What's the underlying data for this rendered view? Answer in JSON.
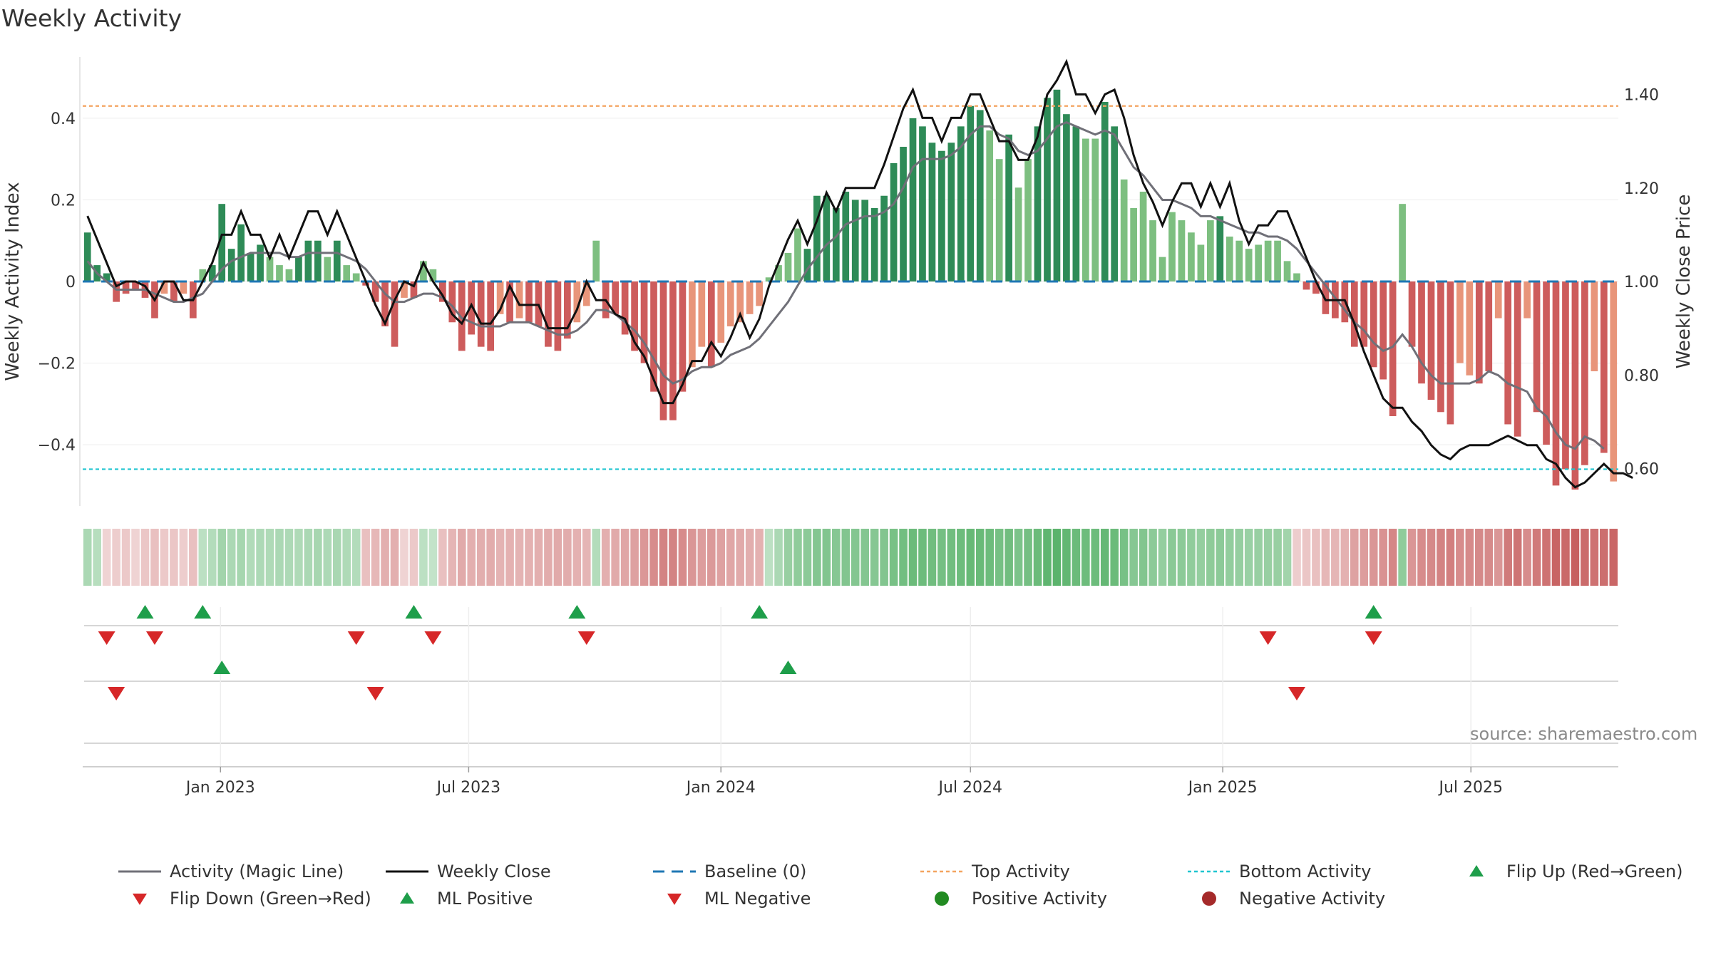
{
  "title": "Weekly Activity",
  "source": "source: sharemaestro.com",
  "colors": {
    "pos_dark": "#2e8b57",
    "pos_light": "#7dbf80",
    "neg_dark": "#cd5c5c",
    "neg_light": "#e8957a",
    "magic": "#707078",
    "close": "#111111",
    "baseline": "#1f77b4",
    "top": "#f4a460",
    "bottom": "#20c5d0",
    "up": "#1e9e4a",
    "down": "#d62728",
    "pos_dot": "#228b22",
    "neg_dot": "#a52a2a"
  },
  "chart_data": {
    "type": "bar",
    "y_left_label": "Weekly Activity Index",
    "y_right_label": "Weekly Close Price",
    "left_ticks": [
      "0.4",
      "0.2",
      "0",
      "−0.2",
      "−0.4"
    ],
    "right_ticks": [
      "1.40",
      "1.20",
      "1.00",
      "0.80",
      "0.60"
    ],
    "x_ticks": [
      "Jan 2023",
      "Jul 2023",
      "Jan 2024",
      "Jul 2024",
      "Jan 2025",
      "Jul 2025"
    ],
    "x_tick_dates": [
      "2023-01-01",
      "2023-07-01",
      "2024-01-01",
      "2024-07-01",
      "2025-01-01",
      "2025-07-01"
    ],
    "start_date": "2022-09-26",
    "ylim_left": [
      -0.55,
      0.55
    ],
    "ylim_right": [
      0.52,
      1.48
    ],
    "top_activity": 0.43,
    "bottom_activity": -0.46,
    "bar_weeks": [
      0,
      1,
      2,
      3,
      4,
      5,
      6,
      7,
      8,
      9,
      10,
      11,
      12,
      13,
      14,
      15,
      16,
      17,
      18,
      19,
      20,
      21,
      22,
      23,
      24,
      25,
      26,
      27,
      28,
      29,
      30,
      31,
      32,
      33,
      34,
      35,
      36,
      37,
      38,
      39,
      40,
      41,
      42,
      43,
      44,
      45,
      46,
      47,
      48,
      49,
      50,
      51,
      52,
      53,
      54,
      55,
      56,
      57,
      58,
      59,
      60,
      61,
      62,
      63,
      64,
      65,
      66,
      67,
      68,
      69,
      70,
      71,
      72,
      73,
      74,
      75,
      76,
      77,
      78,
      79,
      80,
      81,
      82,
      83,
      84,
      85,
      86,
      87,
      88,
      89,
      90,
      91,
      92,
      93,
      94,
      95,
      96,
      97,
      98,
      99,
      100,
      101,
      102,
      103,
      104,
      105,
      106,
      107,
      108,
      109,
      110,
      111,
      112,
      113,
      114,
      115,
      116,
      117,
      118,
      119,
      120,
      121,
      122,
      123,
      124,
      125,
      126,
      127,
      128,
      129,
      130,
      131,
      132,
      133,
      134,
      135,
      136,
      137,
      138,
      139,
      140,
      141,
      142,
      143,
      144,
      145,
      146,
      147,
      148,
      149,
      150,
      151,
      152,
      153,
      154,
      155,
      156,
      157,
      158,
      159
    ],
    "activity": [
      0.12,
      0.04,
      0.02,
      -0.05,
      -0.03,
      -0.02,
      -0.04,
      -0.09,
      -0.03,
      -0.05,
      -0.03,
      -0.09,
      0.03,
      0.04,
      0.19,
      0.08,
      0.14,
      0.07,
      0.09,
      0.06,
      0.04,
      0.03,
      0.06,
      0.1,
      0.1,
      0.06,
      0.1,
      0.04,
      0.02,
      -0.01,
      -0.05,
      -0.11,
      -0.16,
      -0.04,
      -0.04,
      0.05,
      0.03,
      -0.05,
      -0.1,
      -0.17,
      -0.13,
      -0.16,
      -0.17,
      -0.08,
      -0.1,
      -0.09,
      -0.1,
      -0.11,
      -0.16,
      -0.17,
      -0.14,
      -0.1,
      -0.06,
      0.1,
      -0.09,
      -0.08,
      -0.13,
      -0.17,
      -0.2,
      -0.27,
      -0.34,
      -0.34,
      -0.27,
      -0.21,
      -0.16,
      -0.21,
      -0.15,
      -0.11,
      -0.1,
      -0.08,
      -0.06,
      0.01,
      0.04,
      0.07,
      0.13,
      0.08,
      0.21,
      0.21,
      0.18,
      0.22,
      0.2,
      0.2,
      0.18,
      0.21,
      0.29,
      0.33,
      0.4,
      0.38,
      0.34,
      0.32,
      0.34,
      0.38,
      0.43,
      0.42,
      0.37,
      0.3,
      0.36,
      0.23,
      0.3,
      0.38,
      0.45,
      0.47,
      0.41,
      0.38,
      0.35,
      0.35,
      0.44,
      0.38,
      0.25,
      0.18,
      0.22,
      0.15,
      0.06,
      0.17,
      0.15,
      0.12,
      0.09,
      0.15,
      0.16,
      0.11,
      0.1,
      0.08,
      0.09,
      0.1,
      0.1,
      0.05,
      0.02,
      -0.02,
      -0.03,
      -0.08,
      -0.09,
      -0.1,
      -0.16,
      -0.16,
      -0.21,
      -0.24,
      -0.33,
      0.19,
      -0.16,
      -0.25,
      -0.29,
      -0.32,
      -0.35,
      -0.2,
      -0.23,
      -0.25,
      -0.22,
      -0.09,
      -0.35,
      -0.38,
      -0.09,
      -0.32,
      -0.4,
      -0.5,
      -0.46,
      -0.51,
      -0.45,
      -0.22,
      -0.42,
      -0.49
    ],
    "magic_line": [
      0.05,
      0.02,
      0.0,
      -0.02,
      -0.02,
      -0.02,
      -0.02,
      -0.03,
      -0.04,
      -0.05,
      -0.05,
      -0.04,
      -0.03,
      0.0,
      0.03,
      0.05,
      0.06,
      0.07,
      0.07,
      0.07,
      0.07,
      0.06,
      0.06,
      0.07,
      0.07,
      0.07,
      0.07,
      0.06,
      0.05,
      0.03,
      0.0,
      -0.03,
      -0.05,
      -0.05,
      -0.04,
      -0.03,
      -0.03,
      -0.04,
      -0.06,
      -0.09,
      -0.1,
      -0.11,
      -0.11,
      -0.11,
      -0.1,
      -0.1,
      -0.1,
      -0.11,
      -0.12,
      -0.13,
      -0.13,
      -0.12,
      -0.1,
      -0.07,
      -0.07,
      -0.08,
      -0.1,
      -0.12,
      -0.15,
      -0.19,
      -0.23,
      -0.25,
      -0.24,
      -0.22,
      -0.21,
      -0.21,
      -0.2,
      -0.18,
      -0.17,
      -0.16,
      -0.14,
      -0.11,
      -0.08,
      -0.05,
      -0.01,
      0.03,
      0.06,
      0.09,
      0.11,
      0.14,
      0.15,
      0.16,
      0.16,
      0.17,
      0.19,
      0.23,
      0.28,
      0.3,
      0.3,
      0.3,
      0.31,
      0.33,
      0.36,
      0.38,
      0.38,
      0.36,
      0.35,
      0.32,
      0.31,
      0.32,
      0.35,
      0.38,
      0.39,
      0.38,
      0.37,
      0.36,
      0.37,
      0.36,
      0.32,
      0.28,
      0.26,
      0.23,
      0.2,
      0.2,
      0.19,
      0.18,
      0.16,
      0.16,
      0.15,
      0.14,
      0.13,
      0.12,
      0.12,
      0.11,
      0.11,
      0.1,
      0.08,
      0.05,
      0.02,
      -0.01,
      -0.04,
      -0.07,
      -0.1,
      -0.12,
      -0.15,
      -0.17,
      -0.16,
      -0.13,
      -0.16,
      -0.2,
      -0.23,
      -0.25,
      -0.25,
      -0.25,
      -0.25,
      -0.24,
      -0.22,
      -0.23,
      -0.25,
      -0.26,
      -0.27,
      -0.31,
      -0.33,
      -0.37,
      -0.4,
      -0.41,
      -0.38,
      -0.39,
      -0.41
    ],
    "weekly_close": [
      1.14,
      1.09,
      1.04,
      0.99,
      1.0,
      1.0,
      0.99,
      0.96,
      1.0,
      1.0,
      0.96,
      0.96,
      1.0,
      1.04,
      1.1,
      1.1,
      1.15,
      1.1,
      1.1,
      1.05,
      1.1,
      1.05,
      1.1,
      1.15,
      1.15,
      1.1,
      1.15,
      1.1,
      1.05,
      1.0,
      0.95,
      0.91,
      0.96,
      1.0,
      0.99,
      1.04,
      1.0,
      0.97,
      0.93,
      0.91,
      0.95,
      0.91,
      0.91,
      0.94,
      0.99,
      0.95,
      0.95,
      0.95,
      0.9,
      0.9,
      0.9,
      0.94,
      1.0,
      0.96,
      0.96,
      0.93,
      0.92,
      0.87,
      0.84,
      0.79,
      0.74,
      0.74,
      0.78,
      0.83,
      0.83,
      0.87,
      0.84,
      0.88,
      0.93,
      0.88,
      0.92,
      0.99,
      1.04,
      1.09,
      1.13,
      1.08,
      1.13,
      1.19,
      1.15,
      1.2,
      1.2,
      1.2,
      1.2,
      1.25,
      1.31,
      1.37,
      1.41,
      1.35,
      1.35,
      1.3,
      1.35,
      1.35,
      1.4,
      1.4,
      1.35,
      1.3,
      1.3,
      1.26,
      1.26,
      1.31,
      1.4,
      1.43,
      1.47,
      1.4,
      1.4,
      1.36,
      1.4,
      1.41,
      1.35,
      1.27,
      1.21,
      1.17,
      1.12,
      1.17,
      1.21,
      1.21,
      1.16,
      1.21,
      1.16,
      1.21,
      1.13,
      1.08,
      1.12,
      1.12,
      1.15,
      1.15,
      1.1,
      1.05,
      1.0,
      0.96,
      0.96,
      0.96,
      0.91,
      0.85,
      0.8,
      0.75,
      0.73,
      0.73,
      0.7,
      0.68,
      0.65,
      0.63,
      0.62,
      0.64,
      0.65,
      0.65,
      0.65,
      0.66,
      0.67,
      0.66,
      0.65,
      0.65,
      0.62,
      0.61,
      0.58,
      0.56,
      0.57,
      0.59,
      0.61,
      0.59,
      0.59,
      0.58
    ],
    "heat_intensity": [
      0.35,
      0.28,
      -0.15,
      -0.18,
      -0.2,
      -0.15,
      -0.22,
      -0.25,
      -0.2,
      -0.22,
      -0.18,
      -0.25,
      0.25,
      0.3,
      0.4,
      0.35,
      0.38,
      0.32,
      0.34,
      0.33,
      0.35,
      0.34,
      0.33,
      0.35,
      0.37,
      0.34,
      0.36,
      0.33,
      0.3,
      -0.25,
      -0.3,
      -0.35,
      -0.35,
      -0.15,
      -0.2,
      0.25,
      0.22,
      -0.25,
      -0.32,
      -0.38,
      -0.35,
      -0.36,
      -0.37,
      -0.33,
      -0.34,
      -0.33,
      -0.34,
      -0.35,
      -0.37,
      -0.38,
      -0.37,
      -0.34,
      -0.32,
      0.3,
      -0.35,
      -0.38,
      -0.4,
      -0.43,
      -0.48,
      -0.55,
      -0.6,
      -0.6,
      -0.55,
      -0.5,
      -0.45,
      -0.47,
      -0.43,
      -0.4,
      -0.38,
      -0.36,
      -0.34,
      0.25,
      0.35,
      0.45,
      0.5,
      0.52,
      0.56,
      0.57,
      0.55,
      0.57,
      0.56,
      0.56,
      0.55,
      0.57,
      0.62,
      0.65,
      0.7,
      0.68,
      0.66,
      0.64,
      0.66,
      0.68,
      0.72,
      0.71,
      0.68,
      0.63,
      0.66,
      0.6,
      0.64,
      0.7,
      0.76,
      0.78,
      0.74,
      0.7,
      0.68,
      0.68,
      0.73,
      0.7,
      0.62,
      0.55,
      0.57,
      0.52,
      0.47,
      0.53,
      0.52,
      0.5,
      0.47,
      0.51,
      0.52,
      0.48,
      0.46,
      0.44,
      0.45,
      0.45,
      0.45,
      0.4,
      -0.18,
      -0.22,
      -0.25,
      -0.3,
      -0.32,
      -0.34,
      -0.42,
      -0.45,
      -0.5,
      -0.52,
      -0.58,
      0.5,
      -0.5,
      -0.55,
      -0.57,
      -0.6,
      -0.62,
      -0.55,
      -0.56,
      -0.57,
      -0.56,
      -0.5,
      -0.65,
      -0.68,
      -0.55,
      -0.65,
      -0.7,
      -0.78,
      -0.75,
      -0.8,
      -0.74,
      -0.7,
      -0.72,
      -0.76
    ],
    "flip_up_weeks": [
      6,
      12,
      34,
      51,
      70,
      134
    ],
    "flip_down_weeks": [
      2,
      7,
      28,
      36,
      52,
      123,
      134
    ],
    "ml_positive_weeks": [
      14,
      73
    ],
    "ml_negative_weeks": [
      3,
      30,
      126
    ]
  },
  "legend": [
    {
      "key": "magic",
      "label": "Activity (Magic Line)"
    },
    {
      "key": "close",
      "label": "Weekly Close"
    },
    {
      "key": "baseline",
      "label": "Baseline (0)"
    },
    {
      "key": "top",
      "label": "Top Activity"
    },
    {
      "key": "bottom",
      "label": "Bottom Activity"
    },
    {
      "key": "flipup",
      "label": "Flip Up (Red→Green)"
    },
    {
      "key": "flipdown",
      "label": "Flip Down (Green→Red)"
    },
    {
      "key": "mlpos",
      "label": "ML Positive"
    },
    {
      "key": "mlneg",
      "label": "ML Negative"
    },
    {
      "key": "posdot",
      "label": "Positive Activity"
    },
    {
      "key": "negdot",
      "label": "Negative Activity"
    }
  ]
}
